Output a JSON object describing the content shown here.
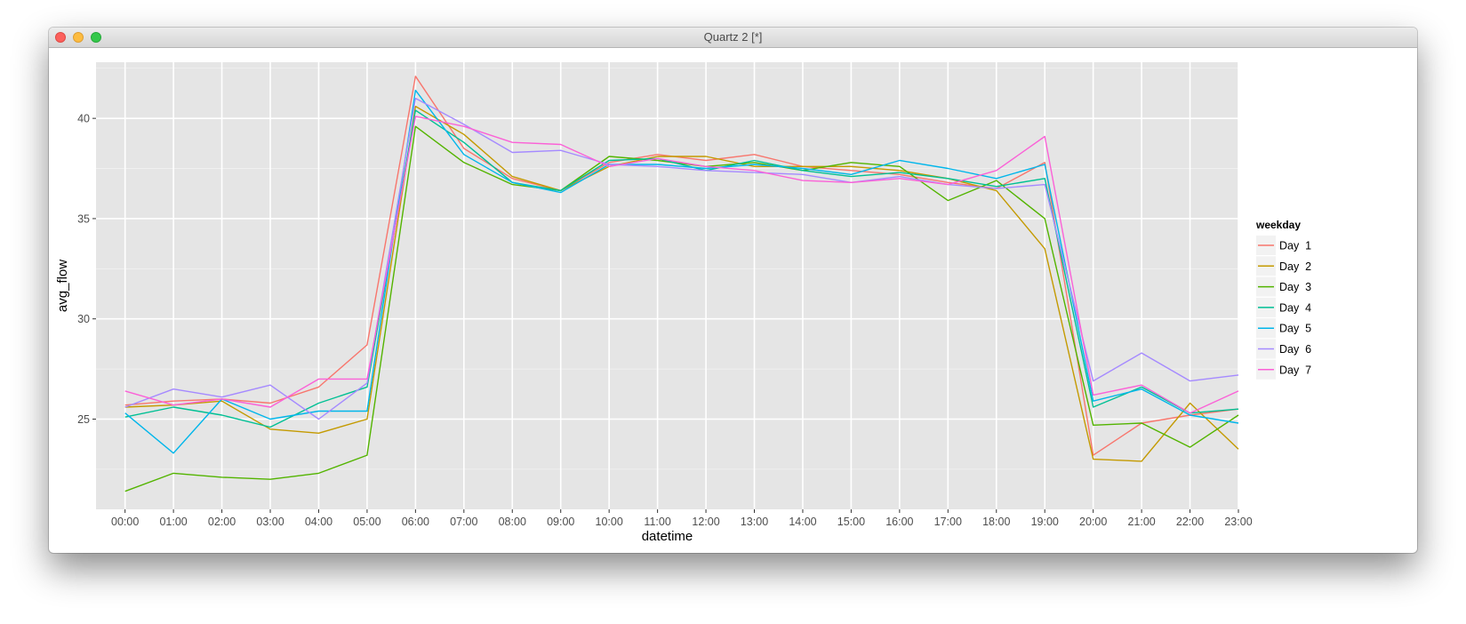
{
  "window": {
    "title": "Quartz 2 [*]"
  },
  "colors": {
    "panel_bg": "#e5e5e5",
    "grid_major": "#ffffff",
    "grid_minor": "#f2f2f2",
    "tick_text": "#4d4d4d"
  },
  "chart_data": {
    "type": "line",
    "title": "",
    "xlabel": "datetime",
    "ylabel": "avg_flow",
    "ylim": [
      20.5,
      42.8
    ],
    "yticks": [
      25,
      30,
      35,
      40
    ],
    "grid": true,
    "legend_title": "weekday",
    "legend_position": "right",
    "categories": [
      "00:00",
      "01:00",
      "02:00",
      "03:00",
      "04:00",
      "05:00",
      "06:00",
      "07:00",
      "08:00",
      "09:00",
      "10:00",
      "11:00",
      "12:00",
      "13:00",
      "14:00",
      "15:00",
      "16:00",
      "17:00",
      "18:00",
      "19:00",
      "20:00",
      "21:00",
      "22:00",
      "23:00"
    ],
    "series": [
      {
        "name": "Day  1",
        "color": "#f8766d",
        "values": [
          25.7,
          25.9,
          26.0,
          25.8,
          26.6,
          28.7,
          42.1,
          38.5,
          37.0,
          36.4,
          37.8,
          38.2,
          37.9,
          38.2,
          37.6,
          37.4,
          37.2,
          36.8,
          36.5,
          37.8,
          23.2,
          24.8,
          25.2,
          25.5
        ]
      },
      {
        "name": "Day  2",
        "color": "#c49a00",
        "values": [
          25.6,
          25.7,
          25.9,
          24.5,
          24.3,
          25.0,
          40.6,
          39.2,
          37.1,
          36.4,
          37.6,
          38.1,
          38.1,
          37.6,
          37.6,
          37.6,
          37.4,
          37.0,
          36.4,
          33.5,
          23.0,
          22.9,
          25.8,
          23.5
        ]
      },
      {
        "name": "Day  3",
        "color": "#53b400",
        "values": [
          21.4,
          22.3,
          22.1,
          22.0,
          22.3,
          23.2,
          39.6,
          37.8,
          36.7,
          36.4,
          38.1,
          37.9,
          37.6,
          37.8,
          37.4,
          37.8,
          37.6,
          35.9,
          36.9,
          35.0,
          24.7,
          24.8,
          23.6,
          25.2
        ]
      },
      {
        "name": "Day  4",
        "color": "#00c094",
        "values": [
          25.1,
          25.6,
          25.2,
          24.6,
          25.8,
          26.6,
          40.4,
          38.8,
          36.8,
          36.4,
          37.9,
          38.0,
          37.4,
          37.9,
          37.4,
          37.1,
          37.3,
          37.0,
          36.6,
          37.0,
          25.6,
          26.6,
          25.3,
          25.5
        ]
      },
      {
        "name": "Day  5",
        "color": "#00b6eb",
        "values": [
          25.3,
          23.3,
          26.0,
          25.0,
          25.4,
          25.4,
          41.4,
          38.2,
          36.8,
          36.3,
          37.7,
          37.7,
          37.5,
          37.7,
          37.5,
          37.2,
          37.9,
          37.5,
          37.0,
          37.7,
          25.9,
          26.5,
          25.2,
          24.8
        ]
      },
      {
        "name": "Day  6",
        "color": "#a58aff",
        "values": [
          25.6,
          26.5,
          26.1,
          26.7,
          25.0,
          26.8,
          41.0,
          39.7,
          38.3,
          38.4,
          37.7,
          37.6,
          37.4,
          37.3,
          37.2,
          36.8,
          37.1,
          36.7,
          36.5,
          36.7,
          26.9,
          28.3,
          26.9,
          27.2
        ]
      },
      {
        "name": "Day  7",
        "color": "#fb61d7",
        "values": [
          26.4,
          25.7,
          26.0,
          25.6,
          27.0,
          27.0,
          40.1,
          39.6,
          38.8,
          38.7,
          37.6,
          38.0,
          37.6,
          37.4,
          36.9,
          36.8,
          37.0,
          36.7,
          37.4,
          39.1,
          26.2,
          26.7,
          25.3,
          26.4
        ]
      }
    ]
  }
}
